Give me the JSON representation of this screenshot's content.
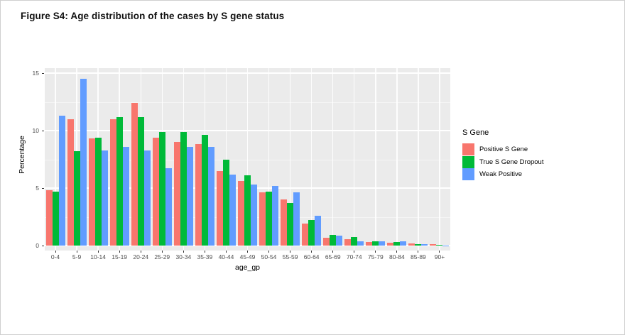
{
  "figure": {
    "title": "Figure S4: Age distribution of the cases by S gene status"
  },
  "chart_data": {
    "type": "bar",
    "title": "Figure S4: Age distribution of the cases by S gene status",
    "xlabel": "age_gp",
    "ylabel": "Percentage",
    "ylim": [
      0,
      15
    ],
    "yticks": [
      0,
      5,
      10,
      15
    ],
    "yticks_minor": [
      2.5,
      7.5,
      12.5
    ],
    "grid": true,
    "panel_background": "#EBEBEB",
    "gridline_color": "#FFFFFF",
    "legend_title": "S Gene",
    "legend_position": "right",
    "categories": [
      "0-4",
      "5-9",
      "10-14",
      "15-19",
      "20-24",
      "25-29",
      "30-34",
      "35-39",
      "40-44",
      "45-49",
      "50-54",
      "55-59",
      "60-64",
      "65-69",
      "70-74",
      "75-79",
      "80-84",
      "85-89",
      "90+"
    ],
    "series": [
      {
        "name": "Positive S Gene",
        "color": "#F8766D",
        "values": [
          4.8,
          11.0,
          9.3,
          11.0,
          12.4,
          9.4,
          9.0,
          8.8,
          6.5,
          5.6,
          4.6,
          4.0,
          1.9,
          0.65,
          0.55,
          0.3,
          0.25,
          0.2,
          0.12
        ]
      },
      {
        "name": "True S Gene Dropout",
        "color": "#00BA38",
        "values": [
          4.7,
          8.2,
          9.4,
          11.2,
          11.2,
          9.9,
          9.9,
          9.6,
          7.5,
          6.1,
          4.7,
          3.7,
          2.2,
          0.9,
          0.75,
          0.4,
          0.3,
          0.15,
          0.05
        ]
      },
      {
        "name": "Weak Positive",
        "color": "#619CFF",
        "values": [
          11.3,
          14.5,
          8.3,
          8.6,
          8.3,
          6.7,
          8.6,
          8.6,
          6.2,
          5.3,
          5.2,
          4.6,
          2.6,
          0.85,
          0.4,
          0.4,
          0.35,
          0.1,
          0.03
        ]
      }
    ]
  }
}
